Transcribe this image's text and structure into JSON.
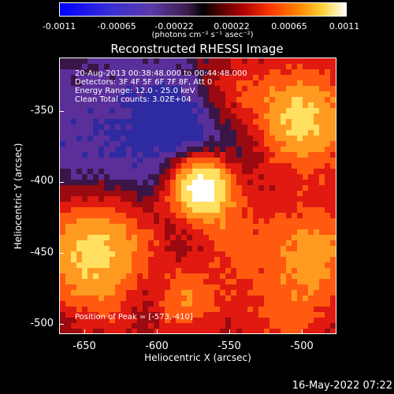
{
  "colorbar": {
    "ticks": [
      "-0.0011",
      "-0.00065",
      "-0.00022",
      "0.00022",
      "0.00065",
      "0.0011"
    ],
    "unit": "(photons cm⁻² s⁻¹ asec⁻²)"
  },
  "plot": {
    "title": "Reconstructed RHESSI Image",
    "info_lines": [
      "20-Aug-2013 00:38:48.000 to 00:44:48.000",
      "Detectors: 3F 4F 5F 6F 7F 8F, Att 0",
      "Energy Range: 12.0 - 25.0 keV",
      "Clean     Total counts: 3.02E+04"
    ],
    "peak_text": "Position of Peak = [-573,-410]",
    "x_title": "Heliocentric X (arcsec)",
    "y_title": "Heliocentric Y (arcsec)",
    "x_ticks": [
      "-650",
      "-600",
      "-550",
      "-500"
    ],
    "y_ticks": [
      "-350",
      "-400",
      "-450",
      "-500"
    ]
  },
  "datestamp": "16-May-2022 07:22",
  "colors": {
    "background": "#000000",
    "negative": "#4a2a8a",
    "positive": "#d01010",
    "peak": "#ffffff"
  }
}
